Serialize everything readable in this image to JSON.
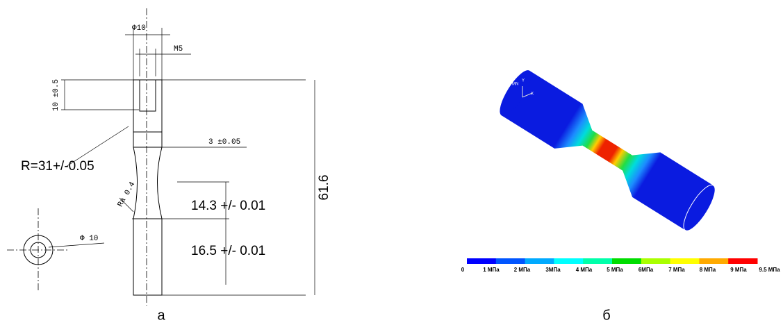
{
  "drawing": {
    "phi_top": "Φ10",
    "thread": "M5",
    "head_depth": "10 ±0.5",
    "neck_diameter": "3 ±0.05",
    "radius": "R=31+/-0.05",
    "roughness_symbol": "Ra",
    "roughness_value": "0.4",
    "gauge_length": "14.3 +/- 0.01",
    "grip_length": "16.5 +/- 0.01",
    "total_length": "61.6",
    "phi_end": "Φ 10",
    "caption": "а"
  },
  "simulation": {
    "axis_labels": [
      "MN",
      "Y",
      "X"
    ],
    "colorbar": {
      "labels": [
        "0",
        "1 МПа",
        "2 МПа",
        "3МПа",
        "4 МПа",
        "5 МПа",
        "6МПа",
        "7 МПа",
        "8 МПа",
        "9 МПа",
        "9.5 МПа"
      ],
      "colors": [
        "#0000ff",
        "#0055ff",
        "#00aaff",
        "#00ffff",
        "#00ffaa",
        "#00dd00",
        "#aaff00",
        "#ffff00",
        "#ffaa00",
        "#ff0000"
      ]
    },
    "caption": "б"
  }
}
